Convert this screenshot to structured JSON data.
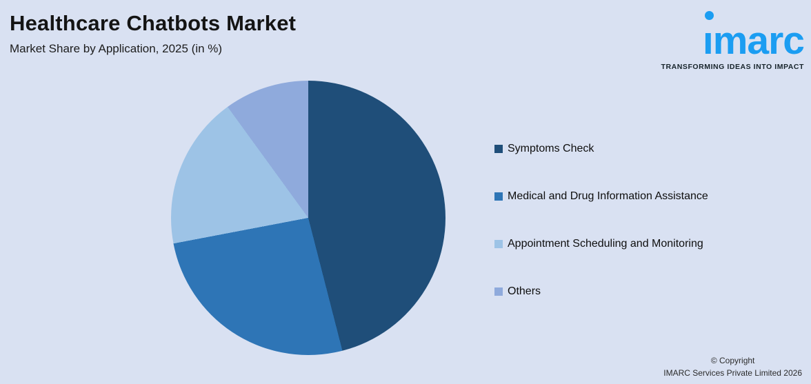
{
  "page": {
    "background_color": "#d9e1f2"
  },
  "header": {
    "title": "Healthcare Chatbots Market",
    "subtitle": "Market Share by Application, 2025 (in %)"
  },
  "logo": {
    "brand": "imarc",
    "tagline": "TRANSFORMING IDEAS INTO IMPACT",
    "color": "#1b9df2"
  },
  "chart_data": {
    "type": "pie",
    "title": "Healthcare Chatbots Market",
    "subtitle": "Market Share by Application, 2025 (in %)",
    "unit": "%",
    "start_angle_deg": 0,
    "direction": "clockwise",
    "legend_position": "right",
    "data_labels_shown": false,
    "labels": [
      "Symptoms Check",
      "Medical and Drug Information Assistance",
      "Appointment Scheduling and Monitoring",
      "Others"
    ],
    "values": [
      46,
      26,
      18,
      10
    ],
    "colors": [
      "#1f4e79",
      "#2e75b6",
      "#9dc3e6",
      "#8faadc"
    ]
  },
  "legend": {
    "items": [
      {
        "label": "Symptoms Check",
        "color": "#1f4e79"
      },
      {
        "label": "Medical and Drug Information Assistance",
        "color": "#2e75b6"
      },
      {
        "label": "Appointment Scheduling and Monitoring",
        "color": "#9dc3e6"
      },
      {
        "label": "Others",
        "color": "#8faadc"
      }
    ]
  },
  "footer": {
    "copyright_line1": "© Copyright",
    "copyright_line2": "IMARC Services Private Limited 2026"
  }
}
